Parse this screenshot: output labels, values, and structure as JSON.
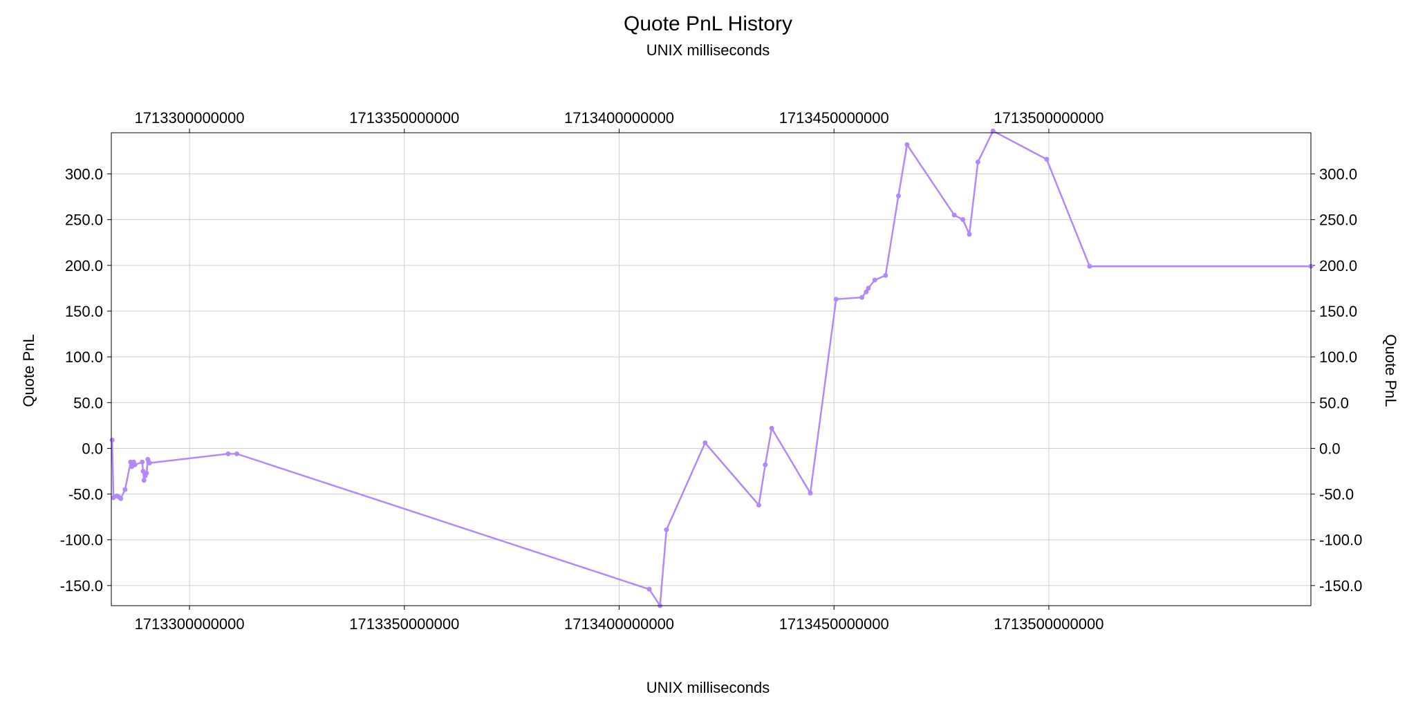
{
  "chart_data": {
    "type": "line",
    "title": "Quote PnL History",
    "subtitle": "UNIX milliseconds",
    "xlabel": "UNIX milliseconds",
    "ylabel": "Quote PnL",
    "xlim": [
      1713281800000,
      1713561000000
    ],
    "ylim": [
      -172,
      345
    ],
    "x_ticks": [
      1713300000000,
      1713350000000,
      1713400000000,
      1713450000000,
      1713500000000
    ],
    "x_tick_labels": [
      "1713300000000",
      "1713350000000",
      "1713400000000",
      "1713450000000",
      "1713500000000"
    ],
    "y_ticks": [
      -150,
      -100,
      -50,
      0,
      50,
      100,
      150,
      200,
      250,
      300
    ],
    "y_tick_labels": [
      "-150.0",
      "-100.0",
      "-50.0",
      "0.0",
      "50.0",
      "100.0",
      "150.0",
      "200.0",
      "250.0",
      "300.0"
    ],
    "grid": true,
    "axes_mirrored": true,
    "line_color": "#b388ff",
    "series": [
      {
        "x": [
          1713282000000,
          1713282300000,
          1713283000000,
          1713283500000,
          1713284000000,
          1713285000000,
          1713286300000,
          1713286600000,
          1713287000000,
          1713287300000,
          1713289000000,
          1713289200000,
          1713289400000,
          1713289700000,
          1713290000000,
          1713290300000,
          1713290500000,
          1713290700000,
          1713309000000,
          1713311000000,
          1713407000000,
          1713409500000,
          1713411000000,
          1713420000000,
          1713432500000,
          1713434000000,
          1713435500000,
          1713444500000,
          1713450500000,
          1713456500000,
          1713457500000,
          1713458000000,
          1713459500000,
          1713462000000,
          1713465000000,
          1713467000000,
          1713478000000,
          1713480000000,
          1713481500000,
          1713483500000,
          1713487000000,
          1713499500000,
          1713509500000,
          1713561000000
        ],
        "y": [
          9,
          -54,
          -52,
          -53,
          -55,
          -45,
          -15,
          -20,
          -15,
          -18,
          -15,
          -25,
          -35,
          -30,
          -27,
          -12,
          -15,
          -16,
          -6,
          -6,
          -154,
          -172,
          -89,
          6,
          -62,
          -18,
          22,
          -49,
          163,
          165,
          171,
          175,
          184,
          189,
          276,
          332,
          255,
          250,
          234,
          313,
          347,
          316,
          199,
          199
        ]
      }
    ]
  }
}
